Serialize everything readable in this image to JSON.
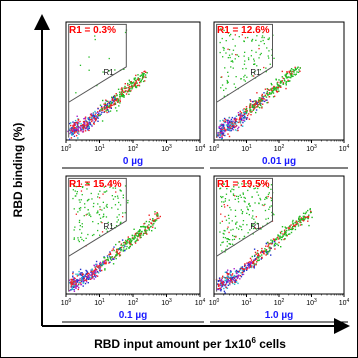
{
  "figure": {
    "y_axis_label": "RBD binding (%)",
    "x_axis_label": "RBD input amount per 1x10",
    "x_axis_label_sup": "6",
    "x_axis_label_end": " cells"
  },
  "colors": {
    "gate_label_red": "#ff0000",
    "condition_label_blue": "#1a1aff",
    "gate_line": "#555555",
    "axis": "#000000",
    "dot_green": "#22bb22",
    "dot_red": "#ee2222",
    "dot_blue": "#2233cc",
    "dot_purple": "#aa22cc",
    "dot_cyan": "#22bbcc"
  },
  "chart_data": [
    {
      "type": "scatter",
      "panel": "top-left",
      "condition": "0 µg",
      "gate_label": "R1 = 0.3%",
      "gate_name": "R1",
      "gate_percent": 0.3,
      "x_scale": "log",
      "x_ticks": [
        "10",
        "10",
        "10",
        "10",
        "10"
      ],
      "x_tick_exponents": [
        "0",
        "1",
        "2",
        "3",
        "4"
      ]
    },
    {
      "type": "scatter",
      "panel": "top-right",
      "condition": "0.01 µg",
      "gate_label": "R1 = 12.6%",
      "gate_name": "R1",
      "gate_percent": 12.6,
      "x_scale": "log",
      "x_ticks": [
        "10",
        "10",
        "10",
        "10",
        "10"
      ],
      "x_tick_exponents": [
        "0",
        "1",
        "2",
        "3",
        "4"
      ]
    },
    {
      "type": "scatter",
      "panel": "bottom-left",
      "condition": "0.1 µg",
      "gate_label": "R1 = 15.4%",
      "gate_name": "R1",
      "gate_percent": 15.4,
      "x_scale": "log",
      "x_ticks": [
        "10",
        "10",
        "10",
        "10",
        "10"
      ],
      "x_tick_exponents": [
        "0",
        "1",
        "2",
        "3",
        "4"
      ]
    },
    {
      "type": "scatter",
      "panel": "bottom-right",
      "condition": "1.0 µg",
      "gate_label": "R1 = 19.5%",
      "gate_name": "R1",
      "gate_percent": 19.5,
      "x_scale": "log",
      "x_ticks": [
        "10",
        "10",
        "10",
        "10",
        "10"
      ],
      "x_tick_exponents": [
        "0",
        "1",
        "2",
        "3",
        "4"
      ]
    }
  ]
}
